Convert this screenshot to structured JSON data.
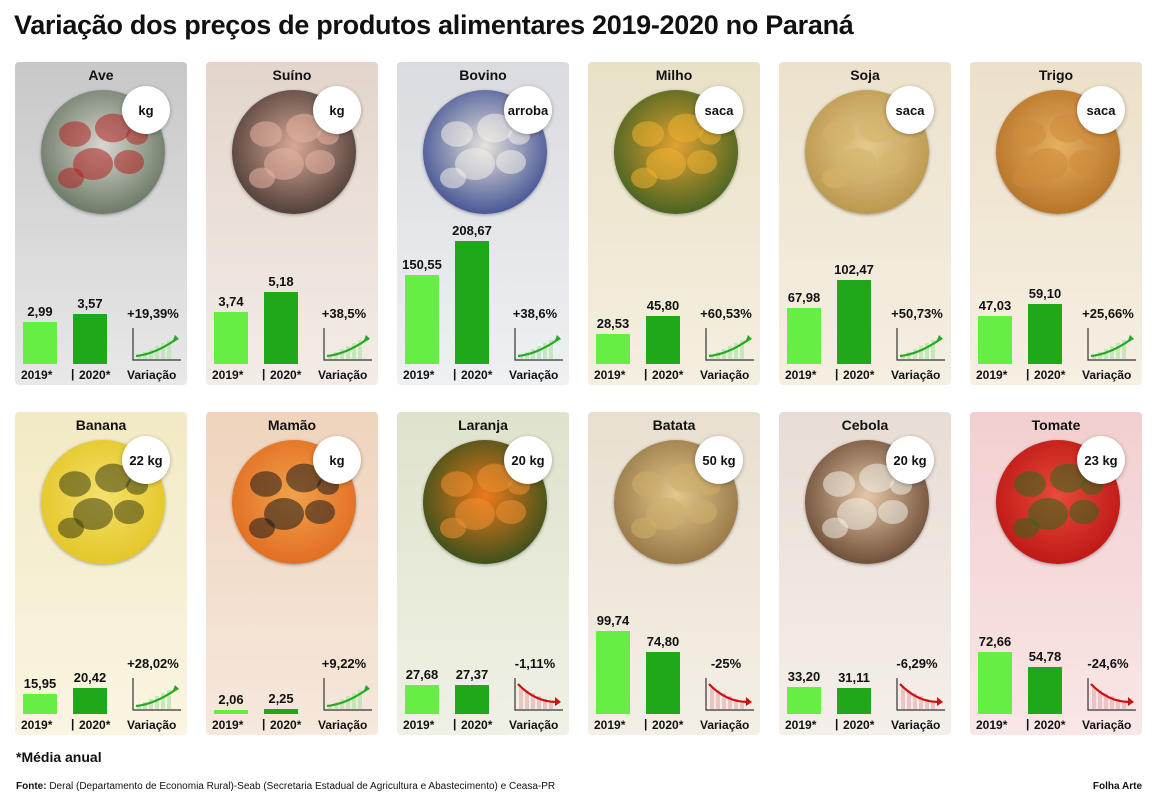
{
  "title": "Variação dos preços de produtos alimentares 2019-2020 no Paraná",
  "note": "*Média anual",
  "source_label": "Fonte:",
  "source_text": "Deral (Departamento de Economia Rural)-Seab (Secretaria Estadual de Agricultura e Abastecimento) e Ceasa-PR",
  "credit": "Folha Arte",
  "colors": {
    "bar_2019": "#66ee44",
    "bar_2020": "#1fa81a",
    "arrow_up": "#22aa22",
    "arrow_down": "#cc1111"
  },
  "labels": {
    "year_2019": "2019*",
    "year_2020": "2020*",
    "separator": "|",
    "variation": "Variação"
  },
  "chart_data": [
    {
      "type": "bar",
      "title": "Ave",
      "unit": "kg",
      "categories": [
        "2019*",
        "2020*"
      ],
      "values": [
        2.99,
        3.57
      ],
      "value_labels": [
        "2,99",
        "3,57"
      ],
      "variation": "+19,39%",
      "direction": "up",
      "image": "chickens-photo"
    },
    {
      "type": "bar",
      "title": "Suíno",
      "unit": "kg",
      "categories": [
        "2019*",
        "2020*"
      ],
      "values": [
        3.74,
        5.18
      ],
      "value_labels": [
        "3,74",
        "5,18"
      ],
      "variation": "+38,5%",
      "direction": "up",
      "image": "pig-photo"
    },
    {
      "type": "bar",
      "title": "Bovino",
      "unit": "arroba",
      "categories": [
        "2019*",
        "2020*"
      ],
      "values": [
        150.55,
        208.67
      ],
      "value_labels": [
        "150,55",
        "208,67"
      ],
      "variation": "+38,6%",
      "direction": "up",
      "image": "cattle-photo"
    },
    {
      "type": "bar",
      "title": "Milho",
      "unit": "saca",
      "categories": [
        "2019*",
        "2020*"
      ],
      "values": [
        28.53,
        45.8
      ],
      "value_labels": [
        "28,53",
        "45,80"
      ],
      "variation": "+60,53%",
      "direction": "up",
      "image": "corn-photo"
    },
    {
      "type": "bar",
      "title": "Soja",
      "unit": "saca",
      "categories": [
        "2019*",
        "2020*"
      ],
      "values": [
        67.98,
        102.47
      ],
      "value_labels": [
        "67,98",
        "102,47"
      ],
      "variation": "+50,73%",
      "direction": "up",
      "image": "soybeans-photo"
    },
    {
      "type": "bar",
      "title": "Trigo",
      "unit": "saca",
      "categories": [
        "2019*",
        "2020*"
      ],
      "values": [
        47.03,
        59.1
      ],
      "value_labels": [
        "47,03",
        "59,10"
      ],
      "variation": "+25,66%",
      "direction": "up",
      "image": "wheat-photo"
    },
    {
      "type": "bar",
      "title": "Banana",
      "unit": "22 kg",
      "categories": [
        "2019*",
        "2020*"
      ],
      "values": [
        15.95,
        20.42
      ],
      "value_labels": [
        "15,95",
        "20,42"
      ],
      "variation": "+28,02%",
      "direction": "up",
      "image": "bananas-photo"
    },
    {
      "type": "bar",
      "title": "Mamão",
      "unit": "kg",
      "categories": [
        "2019*",
        "2020*"
      ],
      "values": [
        2.06,
        2.25
      ],
      "value_labels": [
        "2,06",
        "2,25"
      ],
      "variation": "+9,22%",
      "direction": "up",
      "image": "papaya-photo"
    },
    {
      "type": "bar",
      "title": "Laranja",
      "unit": "20 kg",
      "categories": [
        "2019*",
        "2020*"
      ],
      "values": [
        27.68,
        27.37
      ],
      "value_labels": [
        "27,68",
        "27,37"
      ],
      "variation": "-1,11%",
      "direction": "down",
      "image": "oranges-photo"
    },
    {
      "type": "bar",
      "title": "Batata",
      "unit": "50 kg",
      "categories": [
        "2019*",
        "2020*"
      ],
      "values": [
        99.74,
        74.8
      ],
      "value_labels": [
        "99,74",
        "74,80"
      ],
      "variation": "-25%",
      "direction": "down",
      "image": "potatoes-photo"
    },
    {
      "type": "bar",
      "title": "Cebola",
      "unit": "20 kg",
      "categories": [
        "2019*",
        "2020*"
      ],
      "values": [
        33.2,
        31.11
      ],
      "value_labels": [
        "33,20",
        "31,11"
      ],
      "variation": "-6,29%",
      "direction": "down",
      "image": "onions-photo"
    },
    {
      "type": "bar",
      "title": "Tomate",
      "unit": "23 kg",
      "categories": [
        "2019*",
        "2020*"
      ],
      "values": [
        72.66,
        54.78
      ],
      "value_labels": [
        "72,66",
        "54,78"
      ],
      "variation": "-24,6%",
      "direction": "down",
      "image": "tomatoes-photo"
    }
  ]
}
